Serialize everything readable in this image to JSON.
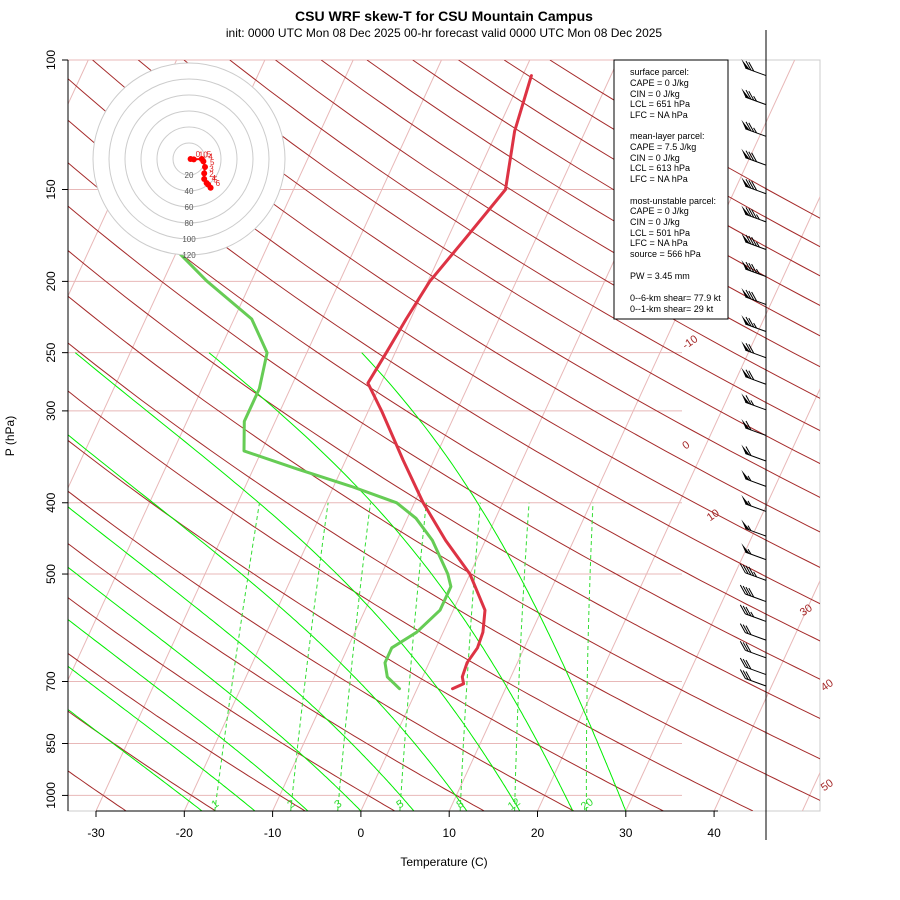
{
  "chart_data": {
    "type": "skew-t",
    "title": "CSU WRF skew-T for CSU Mountain Campus",
    "subtitle": "init: 0000 UTC Mon 08 Dec 2025    00-hr forecast valid 0000 UTC Mon 08 Dec 2025",
    "xlabel": "Temperature (C)",
    "ylabel": "P (hPa)",
    "pressure_ticks": [
      100,
      150,
      200,
      250,
      300,
      400,
      500,
      700,
      850,
      1000
    ],
    "temperature_ticks": [
      -30,
      -20,
      -10,
      0,
      10,
      20,
      30,
      40
    ],
    "xlim": [
      -33,
      45
    ],
    "ylim": [
      1050,
      100
    ],
    "dry_adiabat_labels": [
      "-10",
      "0",
      "10",
      "30",
      "40",
      "50"
    ],
    "mixing_ratio_labels": [
      "1",
      "2",
      "3",
      "5",
      "8",
      "12",
      "20"
    ],
    "temperature_profile": [
      {
        "p": 716,
        "t": 4.0
      },
      {
        "p": 705,
        "t": 5.0
      },
      {
        "p": 690,
        "t": 4.5
      },
      {
        "p": 660,
        "t": 4.3
      },
      {
        "p": 630,
        "t": 4.7
      },
      {
        "p": 600,
        "t": 4.5
      },
      {
        "p": 560,
        "t": 3.6
      },
      {
        "p": 500,
        "t": 0.0
      },
      {
        "p": 450,
        "t": -4.5
      },
      {
        "p": 400,
        "t": -9.0
      },
      {
        "p": 350,
        "t": -13.5
      },
      {
        "p": 300,
        "t": -18.5
      },
      {
        "p": 275,
        "t": -21.5
      },
      {
        "p": 250,
        "t": -21.0
      },
      {
        "p": 225,
        "t": -20.5
      },
      {
        "p": 200,
        "t": -19.8
      },
      {
        "p": 175,
        "t": -18.0
      },
      {
        "p": 150,
        "t": -16.0
      },
      {
        "p": 125,
        "t": -18.0
      },
      {
        "p": 105,
        "t": -19.0
      }
    ],
    "dewpoint_profile": [
      {
        "p": 716,
        "t": -2.0
      },
      {
        "p": 690,
        "t": -4.0
      },
      {
        "p": 660,
        "t": -5.0
      },
      {
        "p": 630,
        "t": -5.0
      },
      {
        "p": 600,
        "t": -3.0
      },
      {
        "p": 560,
        "t": -1.5
      },
      {
        "p": 520,
        "t": -1.5
      },
      {
        "p": 500,
        "t": -2.5
      },
      {
        "p": 450,
        "t": -6.0
      },
      {
        "p": 420,
        "t": -9.0
      },
      {
        "p": 400,
        "t": -12.0
      },
      {
        "p": 380,
        "t": -18.0
      },
      {
        "p": 360,
        "t": -25.0
      },
      {
        "p": 340,
        "t": -32.0
      },
      {
        "p": 310,
        "t": -33.5
      },
      {
        "p": 280,
        "t": -33.5
      },
      {
        "p": 250,
        "t": -34.5
      },
      {
        "p": 225,
        "t": -38.0
      },
      {
        "p": 200,
        "t": -45.0
      },
      {
        "p": 175,
        "t": -52.0
      }
    ],
    "wind_barbs": [
      {
        "p": 105,
        "speed_kt": 70
      },
      {
        "p": 115,
        "speed_kt": 75
      },
      {
        "p": 127,
        "speed_kt": 75
      },
      {
        "p": 139,
        "speed_kt": 80
      },
      {
        "p": 152,
        "speed_kt": 80
      },
      {
        "p": 166,
        "speed_kt": 85
      },
      {
        "p": 181,
        "speed_kt": 85
      },
      {
        "p": 197,
        "speed_kt": 85
      },
      {
        "p": 215,
        "speed_kt": 80
      },
      {
        "p": 234,
        "speed_kt": 75
      },
      {
        "p": 254,
        "speed_kt": 70
      },
      {
        "p": 276,
        "speed_kt": 70
      },
      {
        "p": 299,
        "speed_kt": 65
      },
      {
        "p": 324,
        "speed_kt": 60
      },
      {
        "p": 351,
        "speed_kt": 60
      },
      {
        "p": 380,
        "speed_kt": 55
      },
      {
        "p": 411,
        "speed_kt": 55
      },
      {
        "p": 444,
        "speed_kt": 55
      },
      {
        "p": 478,
        "speed_kt": 55
      },
      {
        "p": 510,
        "speed_kt": 45
      },
      {
        "p": 545,
        "speed_kt": 40
      },
      {
        "p": 580,
        "speed_kt": 35
      },
      {
        "p": 615,
        "speed_kt": 30
      },
      {
        "p": 650,
        "speed_kt": 30
      },
      {
        "p": 685,
        "speed_kt": 30
      },
      {
        "p": 710,
        "speed_kt": 30
      }
    ],
    "hodograph": {
      "rings_kt": [
        20,
        40,
        60,
        80,
        100,
        120
      ],
      "points": [
        {
          "label": "0",
          "u": 2,
          "v": 0
        },
        {
          "label": "10",
          "u": 6,
          "v": -0.5
        },
        {
          "label": "5",
          "u": 16,
          "v": 0
        },
        {
          "label": "4",
          "u": 18,
          "v": -3
        },
        {
          "label": "5",
          "u": 20,
          "v": -10
        },
        {
          "label": "3",
          "u": 19,
          "v": -18
        },
        {
          "label": "2",
          "u": 19,
          "v": -25
        },
        {
          "label": "4",
          "u": 22,
          "v": -30
        },
        {
          "label": "5",
          "u": 24,
          "v": -32
        },
        {
          "label": "6",
          "u": 27,
          "v": -36
        }
      ]
    },
    "stats": {
      "surface_header": "surface parcel:",
      "surface": [
        "CAPE = 0 J/kg",
        "CIN = 0 J/kg",
        "LCL = 651 hPa",
        "LFC = NA hPa"
      ],
      "mixed_header": "mean-layer parcel:",
      "mixed": [
        "CAPE = 7.5 J/kg",
        "CIN = 0 J/kg",
        "LCL = 613 hPa",
        "LFC = NA hPa"
      ],
      "mu_header": "most-unstable parcel:",
      "mu": [
        "CAPE = 0 J/kg",
        "CIN = 0 J/kg",
        "LCL = 501 hPa",
        "LFC = NA hPa",
        "source = 566 hPa"
      ],
      "pw": "PW =  3.45 mm",
      "shear06": "0--6-km shear= 77.9 kt",
      "shear01": "0--1-km shear= 29 kt"
    },
    "colors": {
      "temperature": "#dd3344",
      "dewpoint": "#66cc55",
      "dry_adiabat": "#a52a2a",
      "moist_adiabat": "#00ee00",
      "mixing_ratio": "#33dd33",
      "isobar": "#e8b8b8",
      "isotherm": "#e8b8b8"
    }
  }
}
